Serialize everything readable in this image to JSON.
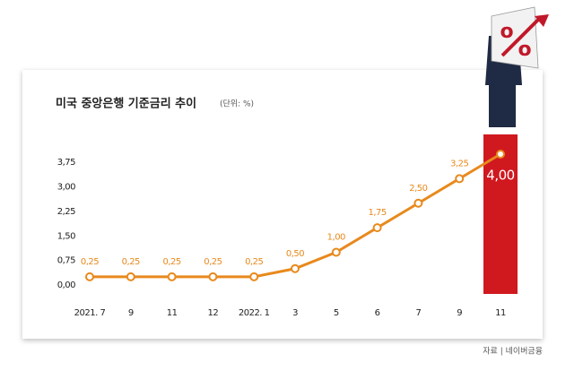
{
  "chart_data": {
    "type": "line",
    "title": "미국 중앙은행 기준금리 추이",
    "subtitle": "(단위: %)",
    "source": "자료 | 네이버금융",
    "categories": [
      "2021. 7",
      "9",
      "11",
      "12",
      "2022. 1",
      "3",
      "5",
      "6",
      "7",
      "9",
      "11"
    ],
    "series": [
      {
        "name": "기준금리",
        "color": "#e8891c",
        "values": [
          0.25,
          0.25,
          0.25,
          0.25,
          0.25,
          0.5,
          1.0,
          1.75,
          2.5,
          3.25,
          4.0
        ],
        "value_labels": [
          "0,25",
          "0,25",
          "0,25",
          "0,25",
          "0,25",
          "0,50",
          "1,00",
          "1,75",
          "2,50",
          "3,25",
          "4,00"
        ]
      }
    ],
    "ylim": [
      0,
      4
    ],
    "yticks": [
      {
        "value": 0,
        "label": "0,00"
      },
      {
        "value": 0.75,
        "label": "0,75"
      },
      {
        "value": 1.5,
        "label": "1,50"
      },
      {
        "value": 2.25,
        "label": "2,25"
      },
      {
        "value": 3,
        "label": "3,00"
      },
      {
        "value": 3.75,
        "label": "3,75"
      }
    ],
    "highlight_color": "#d0181f"
  }
}
